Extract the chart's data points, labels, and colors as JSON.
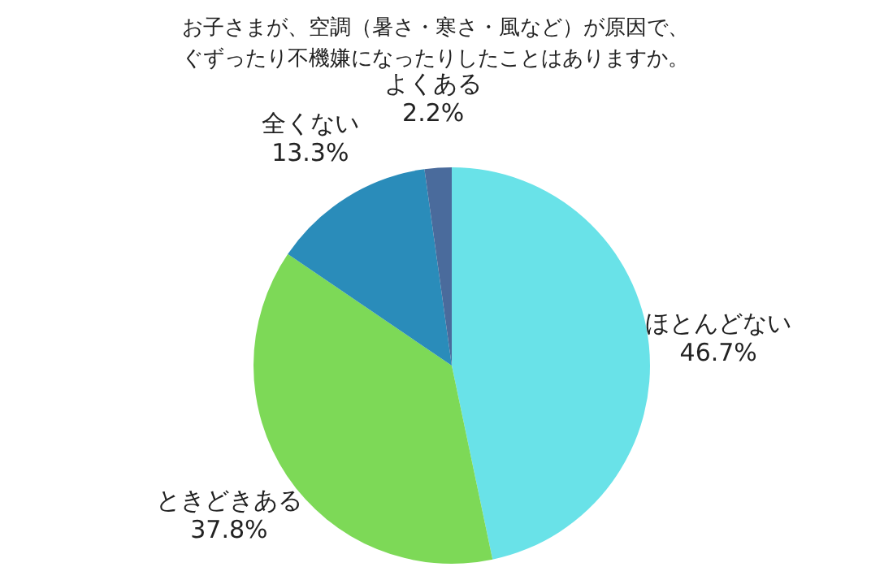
{
  "chart_data": {
    "type": "pie",
    "title": "お子さまが、空調（暑さ・寒さ・風など）が原因で、ぐずったり不機嫌になったりしたことはありますか。",
    "categories": [
      "ほとんどない",
      "ときどきある",
      "全くない",
      "よくある"
    ],
    "values": [
      46.7,
      37.8,
      13.3,
      2.2
    ],
    "value_labels": [
      "46.7%",
      "37.8%",
      "13.3%",
      "2.2%"
    ],
    "colors": [
      "#69e2e8",
      "#7dd957",
      "#2a8cba",
      "#4a6b9c"
    ]
  }
}
